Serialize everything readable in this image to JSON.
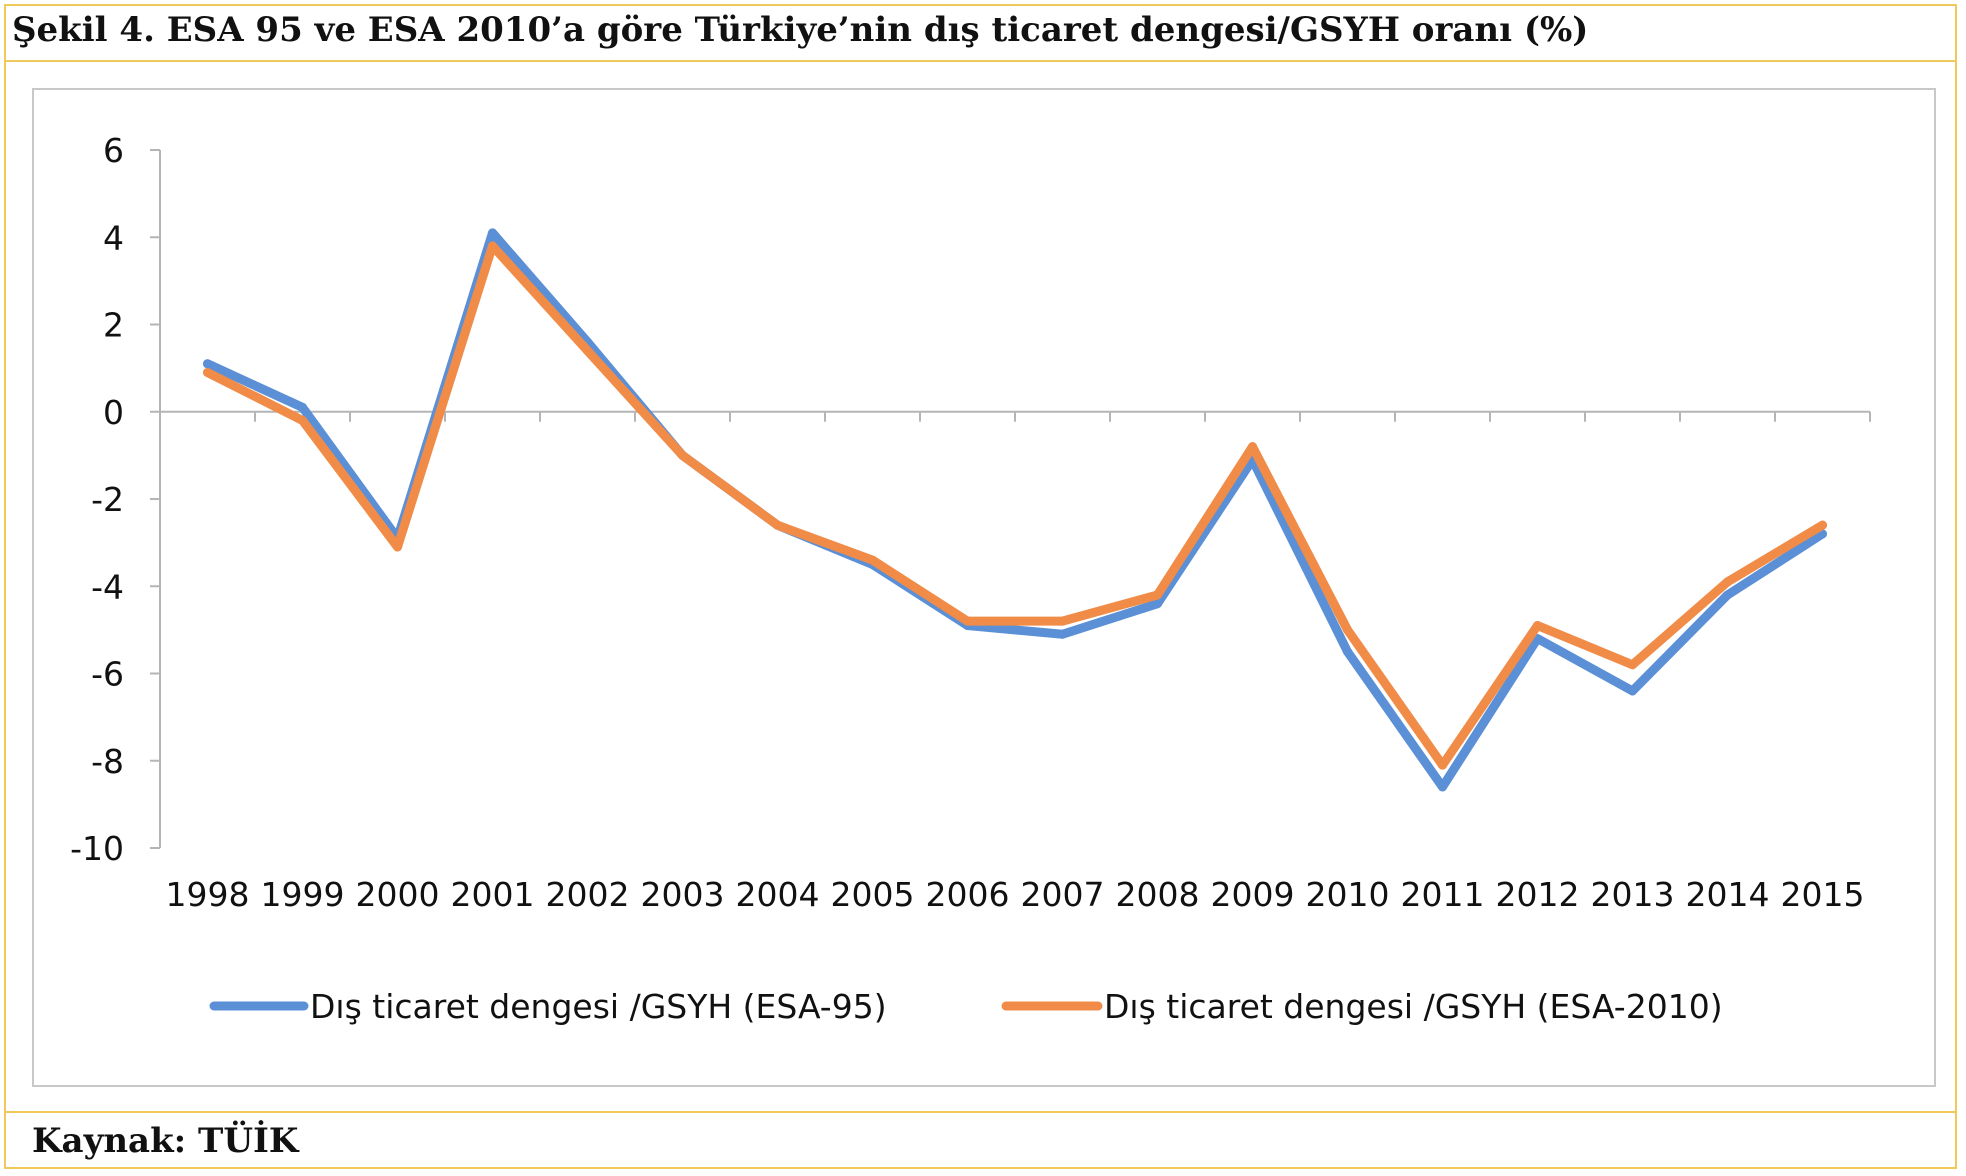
{
  "title": "Şekil 4. ESA 95 ve ESA 2010’a göre Türkiye’nin dış ticaret dengesi/GSYH oranı (%)",
  "source": "Kaynak: TÜİK",
  "colors": {
    "esa95": "#5b8fd6",
    "esa2010": "#f08c48",
    "frame": "#f0c95a",
    "axis": "#b5b5b5"
  },
  "chart_data": {
    "type": "line",
    "categories": [
      "1998",
      "1999",
      "2000",
      "2001",
      "2002",
      "2003",
      "2004",
      "2005",
      "2006",
      "2007",
      "2008",
      "2009",
      "2010",
      "2011",
      "2012",
      "2013",
      "2014",
      "2015"
    ],
    "ylim": [
      -10,
      6
    ],
    "yticks": [
      6,
      4,
      2,
      0,
      -2,
      -4,
      -6,
      -8,
      -10
    ],
    "grid": false,
    "legend_position": "bottom",
    "series": [
      {
        "name": "Dış ticaret dengesi /GSYH (ESA-95)",
        "color": "#5b8fd6",
        "values": [
          1.1,
          0.1,
          -2.9,
          4.1,
          1.6,
          -1.0,
          -2.6,
          -3.5,
          -4.9,
          -5.1,
          -4.4,
          -1.1,
          -5.5,
          -8.6,
          -5.2,
          -6.4,
          -4.2,
          -2.8
        ]
      },
      {
        "name": "Dış ticaret dengesi /GSYH (ESA-2010)",
        "color": "#f08c48",
        "values": [
          0.9,
          -0.2,
          -3.1,
          3.8,
          1.4,
          -1.0,
          -2.6,
          -3.4,
          -4.8,
          -4.8,
          -4.2,
          -0.8,
          -5.0,
          -8.1,
          -4.9,
          -5.8,
          -3.9,
          -2.6
        ]
      }
    ]
  }
}
